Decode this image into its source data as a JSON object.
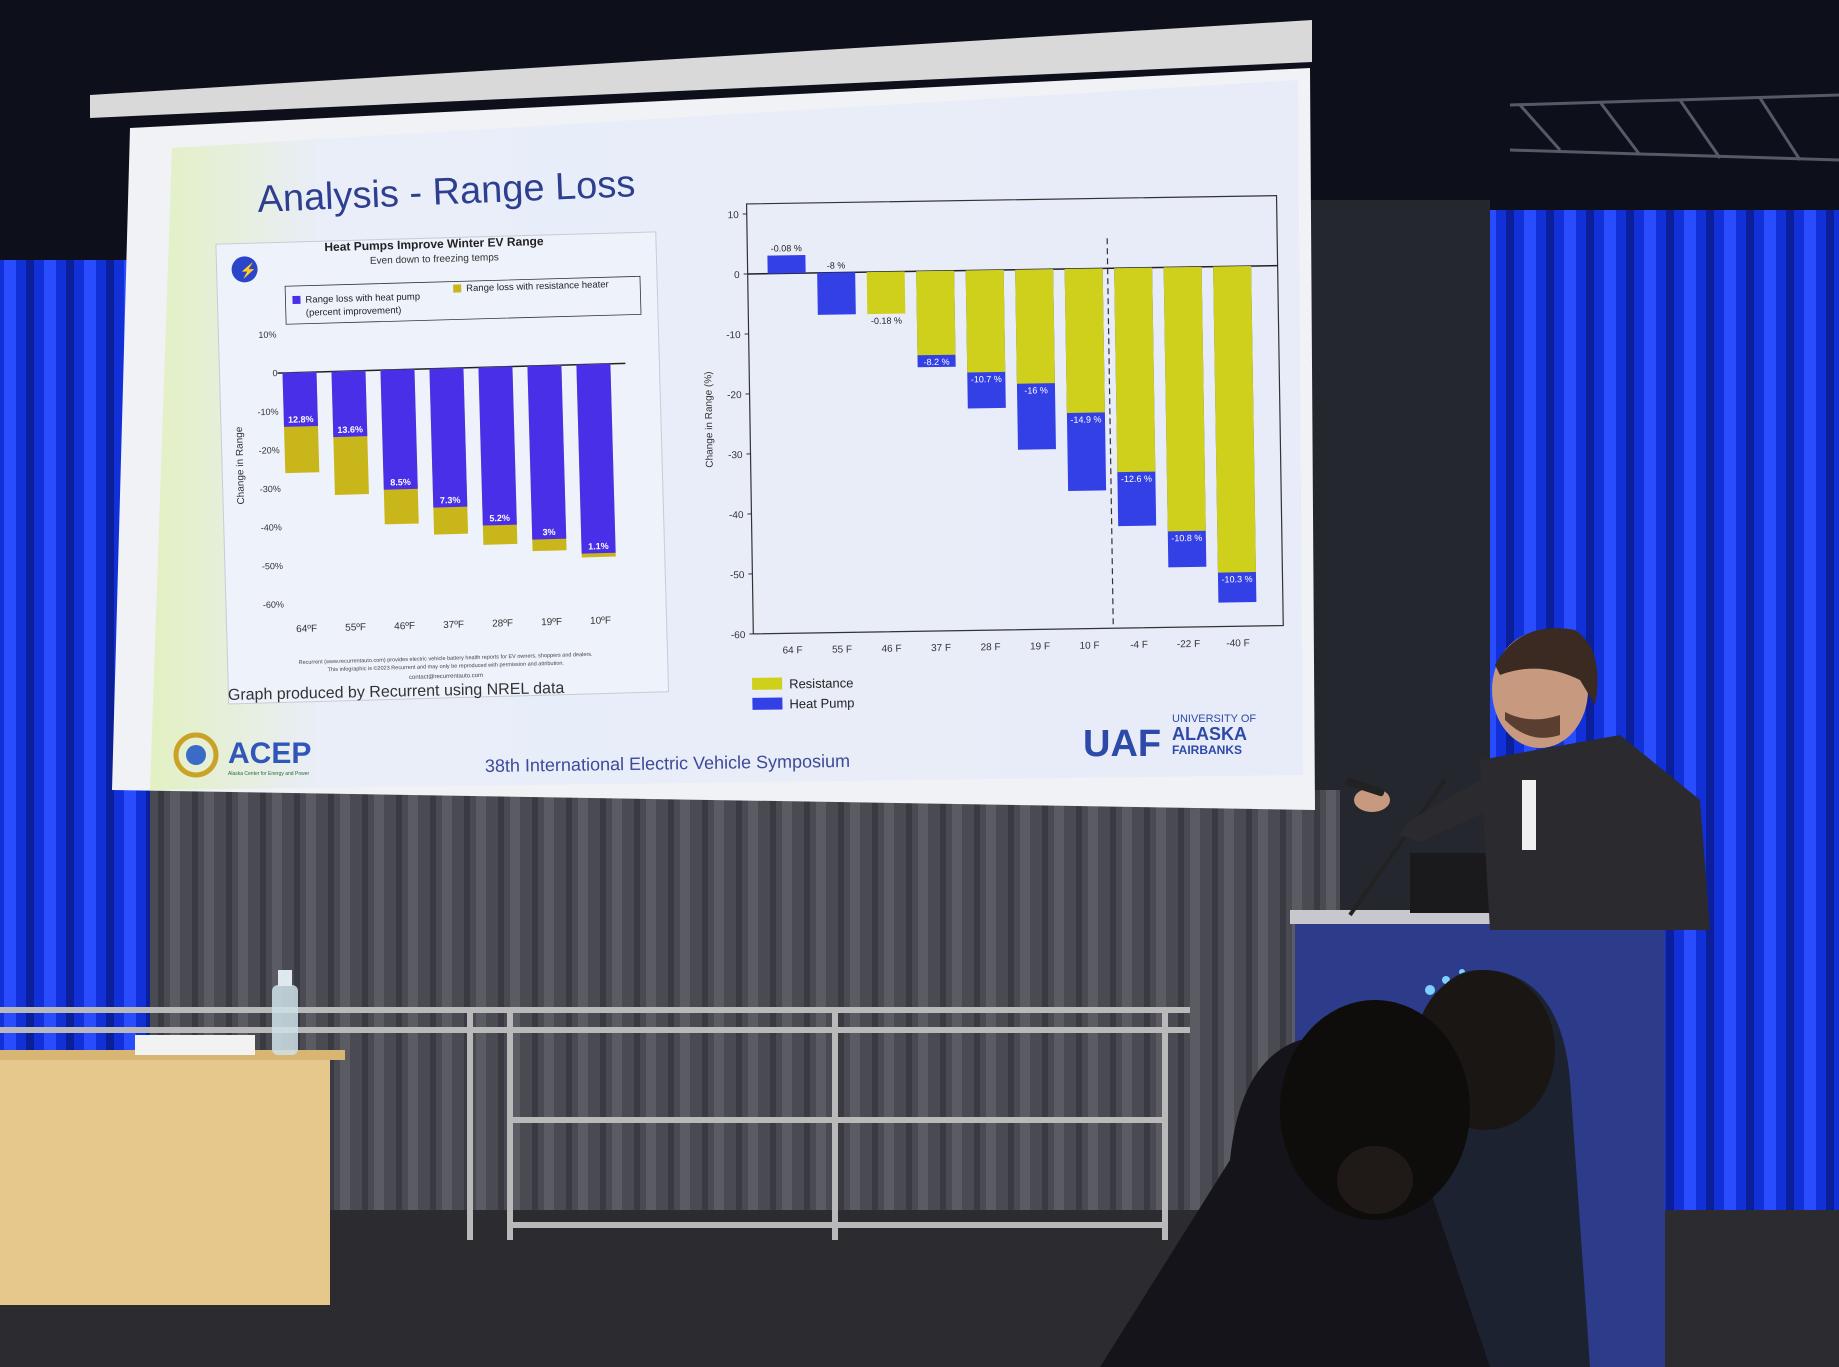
{
  "slide": {
    "title": "Analysis - Range Loss",
    "footer": "38th International Electric Vehicle Symposium",
    "credit": "Graph produced by Recurrent using NREL data",
    "fineprint_1": "Recurrent (www.recurrentauto.com) provides electric vehicle battery health reports for EV owners, shoppers and dealers.",
    "fineprint_2": "This infographic is ©2023 Recurrent and may only be reproduced with permission and attribution.",
    "fineprint_3": "contact@recurrentauto.com",
    "logo_left": "ACEP",
    "logo_left_sub": "Alaska Center for Energy and Power",
    "logo_right_mark": "UAF",
    "logo_right_text": [
      "UNIVERSITY OF",
      "ALASKA",
      "FAIRBANKS"
    ]
  },
  "colors": {
    "heat_pump_left": "#4a2fe8",
    "resistance_left": "#c9b61a",
    "heat_pump_right": "#3340e6",
    "resistance_right": "#cfd01b",
    "slide_bg": "#e9eef9",
    "title": "#2f3f8f"
  },
  "chart_data": [
    {
      "type": "bar",
      "title": "Heat Pumps Improve Winter EV Range",
      "subtitle": "Even down to freezing temps",
      "ylabel": "Change in Range",
      "xlabel": "",
      "ylim": [
        -60,
        10
      ],
      "yticks": [
        "10%",
        "0",
        "-10%",
        "-20%",
        "-30%",
        "-40%",
        "-50%",
        "-60%"
      ],
      "categories": [
        "64ºF",
        "55ºF",
        "46ºF",
        "37ºF",
        "28ºF",
        "19ºF",
        "10ºF"
      ],
      "legend": [
        "Range loss with heat pump (percent improvement)",
        "Range loss with resistance heater"
      ],
      "series": [
        {
          "name": "Range loss with heat pump (percent improvement)",
          "values": [
            -14,
            -17,
            -31,
            -36,
            -41,
            -45,
            -49
          ]
        },
        {
          "name": "Range loss with resistance heater",
          "values": [
            -26,
            -32,
            -40,
            -43,
            -46,
            -48,
            -50
          ]
        }
      ],
      "data_labels": [
        "12.8%",
        "13.6%",
        "8.5%",
        "7.3%",
        "5.2%",
        "3%",
        "1.1%"
      ]
    },
    {
      "type": "bar",
      "ylabel": "Change in Range (%)",
      "xlabel": "",
      "ylim": [
        -60,
        10
      ],
      "yticks": [
        10,
        0,
        -10,
        -20,
        -30,
        -40,
        -50,
        -60
      ],
      "categories": [
        "64 F",
        "55 F",
        "46 F",
        "37 F",
        "28 F",
        "19 F",
        "10 F",
        "-4 F",
        "-22 F",
        "-40 F"
      ],
      "legend": [
        "Resistance",
        "Heat Pump"
      ],
      "series": [
        {
          "name": "Resistance",
          "values": [
            0,
            0,
            -7,
            -14,
            -17,
            -19,
            -24,
            -34,
            -44,
            -51
          ]
        },
        {
          "name": "Heat Pump",
          "values": [
            3,
            -7,
            0,
            -16,
            -23,
            -30,
            -37,
            -43,
            -50,
            -56
          ]
        }
      ],
      "data_labels": [
        "-0.08 %",
        "-8 %",
        "-0.18 %",
        "-8.2 %",
        "-10.7 %",
        "-16 %",
        "-14.9 %",
        "-12.6 %",
        "-10.8 %",
        "-10.3 %"
      ]
    }
  ]
}
